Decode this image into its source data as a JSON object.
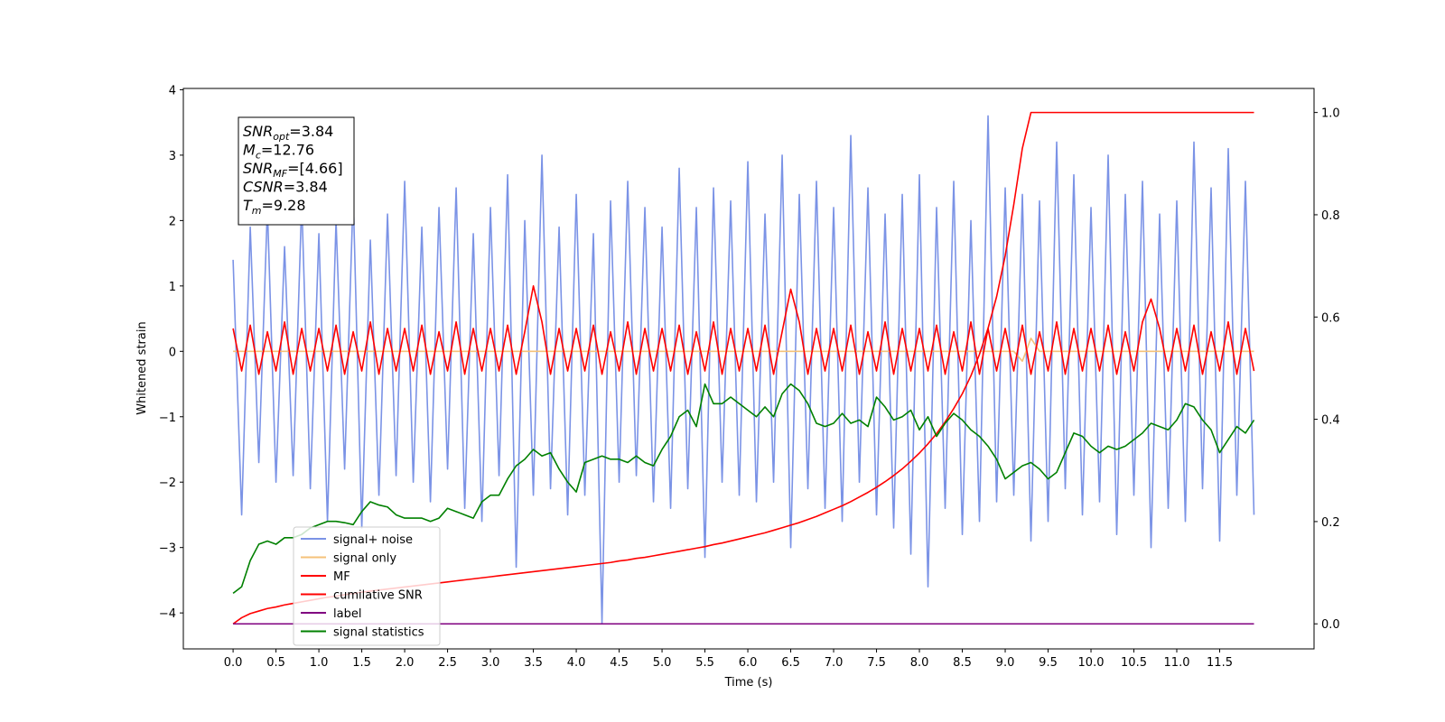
{
  "chart_data": {
    "type": "line",
    "xlabel": "Time (s)",
    "ylabel": "Whitened strain",
    "xlim": [
      -0.58,
      12.6
    ],
    "ylim": [
      -4.55,
      4.02
    ],
    "y2lim": [
      -0.049,
      1.047
    ],
    "xticks": [
      {
        "value": 0,
        "label": "0.0"
      },
      0.5,
      {
        "value": 1,
        "label": "1.0"
      },
      1.5,
      {
        "value": 2,
        "label": "2.0"
      },
      2.5,
      {
        "value": 3,
        "label": "3.0"
      },
      3.5,
      {
        "value": 4,
        "label": "4.0"
      },
      4.5,
      {
        "value": 5,
        "label": "5.0"
      },
      5.5,
      {
        "value": 6,
        "label": "6.0"
      },
      6.5,
      {
        "value": 7,
        "label": "7.0"
      },
      7.5,
      {
        "value": 8,
        "label": "8.0"
      },
      8.5,
      {
        "value": 9,
        "label": "9.0"
      },
      9.5,
      {
        "value": 10,
        "label": "10.0"
      },
      10.5,
      {
        "value": 11,
        "label": "11.0"
      },
      11.5
    ],
    "yticks": [
      {
        "value": -4,
        "label": "−4"
      },
      {
        "value": -3,
        "label": "−3"
      },
      {
        "value": -2,
        "label": "−2"
      },
      {
        "value": -1,
        "label": "−1"
      },
      0,
      1,
      2,
      3,
      4
    ],
    "y2ticks": [
      {
        "value": 0,
        "label": "0.0"
      },
      0.2,
      0.4,
      0.6,
      0.8,
      {
        "value": 1,
        "label": "1.0"
      }
    ],
    "legend_loc": "lower left",
    "annotations": [
      {
        "name": "SNR",
        "sub": "opt",
        "text": "=3.84"
      },
      {
        "name": "M",
        "sub": "c",
        "text": "=12.76"
      },
      {
        "name": "SNR",
        "sub": "MF",
        "text": "=[4.66]"
      },
      {
        "name": "CSNR",
        "text": "=3.84"
      },
      {
        "name": "T",
        "sub": "m",
        "text": "=9.28"
      }
    ],
    "x": [
      0,
      0.1,
      0.2,
      0.3,
      0.4,
      0.5,
      0.6,
      0.7,
      0.8,
      0.9,
      1,
      1.1,
      1.2,
      1.3,
      1.4,
      1.5,
      1.6,
      1.7,
      1.8,
      1.9,
      2,
      2.1,
      2.2,
      2.3,
      2.4,
      2.5,
      2.6,
      2.7,
      2.8,
      2.9,
      3,
      3.1,
      3.2,
      3.3,
      3.4,
      3.5,
      3.6,
      3.7,
      3.8,
      3.9,
      4,
      4.1,
      4.2,
      4.3,
      4.4,
      4.5,
      4.6,
      4.7,
      4.8,
      4.9,
      5,
      5.1,
      5.2,
      5.3,
      5.4,
      5.5,
      5.6,
      5.7,
      5.8,
      5.9,
      6,
      6.1,
      6.2,
      6.3,
      6.4,
      6.5,
      6.6,
      6.7,
      6.8,
      6.9,
      7,
      7.1,
      7.2,
      7.3,
      7.4,
      7.5,
      7.6,
      7.7,
      7.8,
      7.9,
      8,
      8.1,
      8.2,
      8.3,
      8.4,
      8.5,
      8.6,
      8.7,
      8.8,
      8.9,
      9,
      9.1,
      9.2,
      9.3,
      9.4,
      9.5,
      9.6,
      9.7,
      9.8,
      9.9,
      10,
      10.1,
      10.2,
      10.3,
      10.4,
      10.5,
      10.6,
      10.7,
      10.8,
      10.9,
      11,
      11.1,
      11.2,
      11.3,
      11.4,
      11.5,
      11.6,
      11.7,
      11.8,
      11.9
    ],
    "series": [
      {
        "name": "signal+ noise",
        "color": "#7b93e6",
        "values": [
          1.4,
          -2.5,
          1.9,
          -1.7,
          2.2,
          -2.0,
          1.6,
          -1.9,
          2.3,
          -2.1,
          1.8,
          -2.6,
          2.0,
          -1.8,
          2.4,
          -2.7,
          1.7,
          -2.2,
          2.1,
          -1.9,
          2.6,
          -2.0,
          1.9,
          -2.3,
          2.2,
          -1.8,
          2.5,
          -2.4,
          1.8,
          -2.6,
          2.2,
          -1.9,
          2.7,
          -3.3,
          2.0,
          -2.2,
          3.0,
          -2.1,
          1.9,
          -2.5,
          2.4,
          -2.2,
          1.8,
          -4.15,
          2.3,
          -2.0,
          2.6,
          -1.9,
          2.2,
          -2.3,
          1.9,
          -2.4,
          2.8,
          -2.1,
          2.2,
          -3.15,
          2.5,
          -2.0,
          2.3,
          -2.2,
          2.9,
          -2.3,
          2.1,
          -2.0,
          3.0,
          -3.0,
          2.4,
          -2.1,
          2.6,
          -2.4,
          2.2,
          -2.6,
          3.3,
          -2.0,
          2.5,
          -2.5,
          2.1,
          -2.7,
          2.4,
          -3.1,
          2.7,
          -3.6,
          2.2,
          -2.4,
          2.6,
          -2.8,
          2.0,
          -2.6,
          3.6,
          -2.3,
          2.5,
          -2.2,
          2.4,
          -2.9,
          2.3,
          -2.6,
          3.2,
          -2.1,
          2.7,
          -2.5,
          2.2,
          -2.3,
          3.0,
          -2.8,
          2.4,
          -2.2,
          2.6,
          -3.0,
          2.1,
          -2.4,
          2.3,
          -2.6,
          3.2,
          -2.1,
          2.5,
          -2.9,
          3.1,
          -2.2,
          2.6,
          -2.5
        ]
      },
      {
        "name": "signal only",
        "color": "#f5c27a",
        "values": [
          0,
          0,
          0,
          0,
          0,
          0,
          0,
          0,
          0,
          0,
          0,
          0,
          0,
          0,
          0,
          0,
          0,
          0,
          0,
          0,
          0,
          0,
          0,
          0,
          0,
          0,
          0,
          0,
          0,
          0,
          0,
          0,
          0,
          0,
          0,
          0,
          0,
          0,
          0,
          0,
          0,
          0,
          0,
          0,
          0,
          0,
          0,
          0,
          0,
          0,
          0,
          0,
          0,
          0,
          0,
          0,
          0,
          0,
          0,
          0,
          0,
          0,
          0,
          0,
          0,
          0,
          0,
          0,
          0,
          0,
          0,
          0,
          0,
          0,
          0,
          0,
          0,
          0,
          0,
          0,
          0,
          0,
          0,
          0,
          0,
          0,
          0,
          0,
          0,
          0,
          0,
          0,
          -0.15,
          0.2,
          0,
          0,
          0,
          0,
          0,
          0,
          0,
          0,
          0,
          0,
          0,
          0,
          0,
          0,
          0,
          0,
          0,
          0,
          0,
          0,
          0,
          0,
          0,
          0,
          0,
          0
        ]
      },
      {
        "name": "MF",
        "color": "#ff0000",
        "values": [
          0.35,
          -0.3,
          0.4,
          -0.35,
          0.3,
          -0.3,
          0.45,
          -0.35,
          0.35,
          -0.3,
          0.35,
          -0.3,
          0.4,
          -0.35,
          0.3,
          -0.3,
          0.45,
          -0.35,
          0.35,
          -0.3,
          0.35,
          -0.3,
          0.4,
          -0.35,
          0.3,
          -0.3,
          0.45,
          -0.35,
          0.35,
          -0.3,
          0.35,
          -0.3,
          0.4,
          -0.35,
          0.3,
          1.0,
          0.45,
          -0.35,
          0.35,
          -0.3,
          0.35,
          -0.3,
          0.4,
          -0.35,
          0.3,
          -0.3,
          0.45,
          -0.35,
          0.35,
          -0.3,
          0.35,
          -0.3,
          0.4,
          -0.35,
          0.3,
          -0.3,
          0.45,
          -0.35,
          0.35,
          -0.3,
          0.35,
          -0.3,
          0.4,
          -0.35,
          0.3,
          0.95,
          0.45,
          -0.35,
          0.35,
          -0.3,
          0.35,
          -0.3,
          0.4,
          -0.35,
          0.3,
          -0.3,
          0.45,
          -0.35,
          0.35,
          -0.3,
          0.35,
          -0.3,
          0.4,
          -0.35,
          0.3,
          -0.3,
          0.45,
          -0.35,
          0.35,
          -0.3,
          0.35,
          -0.3,
          0.4,
          -0.35,
          0.3,
          -0.3,
          0.45,
          -0.35,
          0.35,
          -0.3,
          0.35,
          -0.3,
          0.4,
          -0.35,
          0.3,
          -0.3,
          0.45,
          0.8,
          0.35,
          -0.3,
          0.35,
          -0.3,
          0.4,
          -0.35,
          0.3,
          -0.3,
          0.45,
          -0.35,
          0.35,
          -0.3
        ]
      },
      {
        "name": "cumilative SNR",
        "color": "#ff0000",
        "axis": "y2",
        "values": [
          0,
          0.012,
          0.02,
          0.025,
          0.03,
          0.033,
          0.037,
          0.04,
          0.043,
          0.046,
          0.049,
          0.052,
          0.054,
          0.057,
          0.059,
          0.062,
          0.064,
          0.066,
          0.068,
          0.07,
          0.072,
          0.074,
          0.076,
          0.078,
          0.08,
          0.082,
          0.084,
          0.086,
          0.088,
          0.09,
          0.092,
          0.094,
          0.096,
          0.098,
          0.1,
          0.102,
          0.104,
          0.106,
          0.108,
          0.11,
          0.112,
          0.114,
          0.116,
          0.118,
          0.12,
          0.123,
          0.125,
          0.128,
          0.13,
          0.133,
          0.136,
          0.139,
          0.142,
          0.145,
          0.148,
          0.151,
          0.155,
          0.158,
          0.162,
          0.166,
          0.17,
          0.174,
          0.178,
          0.183,
          0.188,
          0.193,
          0.198,
          0.204,
          0.21,
          0.217,
          0.224,
          0.231,
          0.239,
          0.248,
          0.257,
          0.267,
          0.278,
          0.29,
          0.303,
          0.318,
          0.334,
          0.352,
          0.372,
          0.395,
          0.421,
          0.45,
          0.485,
          0.527,
          0.578,
          0.64,
          0.72,
          0.82,
          0.93,
          1,
          1,
          1,
          1,
          1,
          1,
          1,
          1,
          1,
          1,
          1,
          1,
          1,
          1,
          1,
          1,
          1,
          1,
          1,
          1,
          1,
          1,
          1,
          1,
          1,
          1,
          1
        ]
      },
      {
        "name": "label",
        "color": "#800080",
        "axis": "y2",
        "values": [
          0,
          0,
          0,
          0,
          0,
          0,
          0,
          0,
          0,
          0,
          0,
          0,
          0,
          0,
          0,
          0,
          0,
          0,
          0,
          0,
          0,
          0,
          0,
          0,
          0,
          0,
          0,
          0,
          0,
          0,
          0,
          0,
          0,
          0,
          0,
          0,
          0,
          0,
          0,
          0,
          0,
          0,
          0,
          0,
          0,
          0,
          0,
          0,
          0,
          0,
          0,
          0,
          0,
          0,
          0,
          0,
          0,
          0,
          0,
          0,
          0,
          0,
          0,
          0,
          0,
          0,
          0,
          0,
          0,
          0,
          0,
          0,
          0,
          0,
          0,
          0,
          0,
          0,
          0,
          0,
          0,
          0,
          0,
          0,
          0,
          0,
          0,
          0,
          0,
          0,
          0,
          0,
          0,
          0,
          0,
          0,
          0,
          0,
          0,
          0,
          0,
          0,
          0,
          0,
          0,
          0,
          0,
          0,
          0,
          0,
          0,
          0,
          0,
          0,
          0,
          0,
          0,
          0,
          0,
          0
        ]
      },
      {
        "name": "signal statistics",
        "color": "#008000",
        "values": [
          -3.7,
          -3.6,
          -3.2,
          -2.95,
          -2.9,
          -2.95,
          -2.85,
          -2.85,
          -2.8,
          -2.7,
          -2.65,
          -2.6,
          -2.6,
          -2.62,
          -2.65,
          -2.45,
          -2.3,
          -2.35,
          -2.38,
          -2.5,
          -2.55,
          -2.55,
          -2.55,
          -2.6,
          -2.55,
          -2.4,
          -2.45,
          -2.5,
          -2.55,
          -2.3,
          -2.2,
          -2.2,
          -1.95,
          -1.75,
          -1.65,
          -1.5,
          -1.6,
          -1.55,
          -1.8,
          -2.0,
          -2.15,
          -1.7,
          -1.65,
          -1.6,
          -1.65,
          -1.65,
          -1.7,
          -1.6,
          -1.7,
          -1.75,
          -1.5,
          -1.3,
          -1.0,
          -0.9,
          -1.15,
          -0.5,
          -0.8,
          -0.8,
          -0.7,
          -0.8,
          -0.9,
          -1.0,
          -0.85,
          -1.0,
          -0.65,
          -0.5,
          -0.6,
          -0.8,
          -1.1,
          -1.15,
          -1.1,
          -0.95,
          -1.1,
          -1.05,
          -1.15,
          -0.7,
          -0.85,
          -1.05,
          -1.0,
          -0.9,
          -1.2,
          -1.0,
          -1.3,
          -1.1,
          -0.95,
          -1.05,
          -1.2,
          -1.3,
          -1.45,
          -1.65,
          -1.95,
          -1.85,
          -1.75,
          -1.7,
          -1.8,
          -1.95,
          -1.85,
          -1.55,
          -1.25,
          -1.3,
          -1.45,
          -1.55,
          -1.45,
          -1.5,
          -1.45,
          -1.35,
          -1.25,
          -1.1,
          -1.15,
          -1.2,
          -1.05,
          -0.8,
          -0.85,
          -1.05,
          -1.2,
          -1.55,
          -1.35,
          -1.15,
          -1.25,
          -1.05
        ]
      }
    ]
  }
}
